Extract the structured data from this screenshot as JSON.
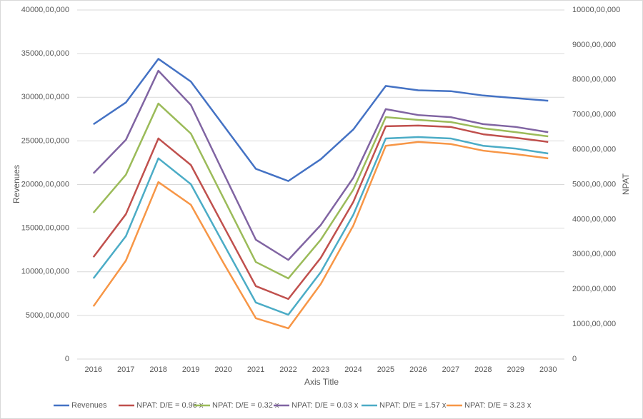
{
  "chart_data": {
    "type": "line",
    "x_title": "Axis Title",
    "y_title": "Revenues",
    "y2_title": "NPAT",
    "categories": [
      "2016",
      "2017",
      "2018",
      "2019",
      "2020",
      "2021",
      "2022",
      "2023",
      "2024",
      "2025",
      "2026",
      "2027",
      "2028",
      "2029",
      "2030"
    ],
    "ylim": [
      0,
      4000000000
    ],
    "yticks": [
      0,
      {
        "value": 500000000,
        "label": "5000,00,000"
      },
      {
        "value": 1000000000,
        "label": "10000,00,000"
      },
      {
        "value": 1500000000,
        "label": "15000,00,000"
      },
      {
        "value": 2000000000,
        "label": "20000,00,000"
      },
      {
        "value": 2500000000,
        "label": "25000,00,000"
      },
      {
        "value": 3000000000,
        "label": "30000,00,000"
      },
      {
        "value": 3500000000,
        "label": "35000,00,000"
      },
      {
        "value": 4000000000,
        "label": "40000,00,000"
      }
    ],
    "y2lim": [
      0,
      1000000000
    ],
    "y2ticks": [
      0,
      {
        "value": 100000000,
        "label": "1000,00,000"
      },
      {
        "value": 200000000,
        "label": "2000,00,000"
      },
      {
        "value": 300000000,
        "label": "3000,00,000"
      },
      {
        "value": 400000000,
        "label": "4000,00,000"
      },
      {
        "value": 500000000,
        "label": "5000,00,000"
      },
      {
        "value": 600000000,
        "label": "6000,00,000"
      },
      {
        "value": 700000000,
        "label": "7000,00,000"
      },
      {
        "value": 800000000,
        "label": "8000,00,000"
      },
      {
        "value": 900000000,
        "label": "9000,00,000"
      },
      {
        "value": 1000000000,
        "label": "10000,00,000"
      }
    ],
    "grid": true,
    "legend": "bottom",
    "series": [
      {
        "name": "Revenues",
        "color": "#4472c4",
        "values": [
          2690000000,
          2940000000,
          3440000000,
          3180000000,
          2680000000,
          2180000000,
          2040000000,
          2290000000,
          2630000000,
          3130000000,
          3080000000,
          3070000000,
          3020000000,
          2990000000,
          2960000000
        ]
      },
      {
        "name": "NPAT: D/E = 0.96 x",
        "color": "#c0504d",
        "axis": "y2",
        "values": [
          292000000,
          415000000,
          632000000,
          556000000,
          382000000,
          209000000,
          172000000,
          290000000,
          450000000,
          667000000,
          669000000,
          665000000,
          644000000,
          634000000,
          622000000
        ]
      },
      {
        "name": "NPAT: D/E = 0.32 x",
        "color": "#9bbb59",
        "axis": "y2",
        "values": [
          419000000,
          528000000,
          732000000,
          646000000,
          462000000,
          278000000,
          231000000,
          342000000,
          485000000,
          693000000,
          685000000,
          679000000,
          661000000,
          650000000,
          638000000
        ]
      },
      {
        "name": "NPAT: D/E = 0.03 x",
        "color": "#8064a2",
        "axis": "y2",
        "values": [
          532000000,
          628000000,
          826000000,
          728000000,
          534000000,
          342000000,
          284000000,
          384000000,
          519000000,
          716000000,
          699000000,
          693000000,
          673000000,
          665000000,
          650000000
        ]
      },
      {
        "name": "NPAT: D/E = 1.57 x",
        "color": "#4bacc6",
        "axis": "y2",
        "values": [
          231000000,
          352000000,
          575000000,
          501000000,
          331000000,
          162000000,
          127000000,
          249000000,
          413000000,
          632000000,
          636000000,
          632000000,
          611000000,
          603000000,
          589000000
        ]
      },
      {
        "name": "NPAT: D/E = 3.23 x",
        "color": "#f79646",
        "axis": "y2",
        "values": [
          151000000,
          282000000,
          507000000,
          442000000,
          276000000,
          117000000,
          88000000,
          215000000,
          382000000,
          611000000,
          622000000,
          616000000,
          597000000,
          587000000,
          575000000
        ]
      }
    ]
  }
}
